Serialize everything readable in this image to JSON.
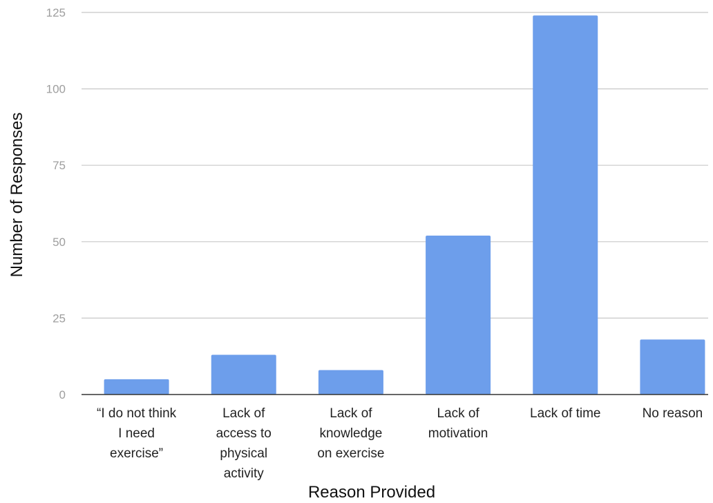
{
  "chart_data": {
    "type": "bar",
    "categories": [
      "“I do not think I need exercise”",
      "Lack of access to physical activity",
      "Lack of knowledge on exercise",
      "Lack of motivation",
      "Lack of time",
      "No reason"
    ],
    "category_lines": [
      [
        "“I do not think",
        "I need",
        "exercise”"
      ],
      [
        "Lack of",
        "access to",
        "physical",
        "activity"
      ],
      [
        "Lack of",
        "knowledge",
        "on exercise"
      ],
      [
        "Lack of",
        "motivation"
      ],
      [
        "Lack of time"
      ],
      [
        "No reason"
      ]
    ],
    "values": [
      5,
      13,
      8,
      52,
      124,
      18
    ],
    "xlabel": "Reason Provided",
    "ylabel": "Number of Responses",
    "ylim": [
      0,
      125
    ],
    "yticks": [
      0,
      25,
      50,
      75,
      100,
      125
    ],
    "grid": true,
    "legend": "none",
    "bar_color": "#6d9eeb",
    "grid_color": "#c8c8c8"
  }
}
